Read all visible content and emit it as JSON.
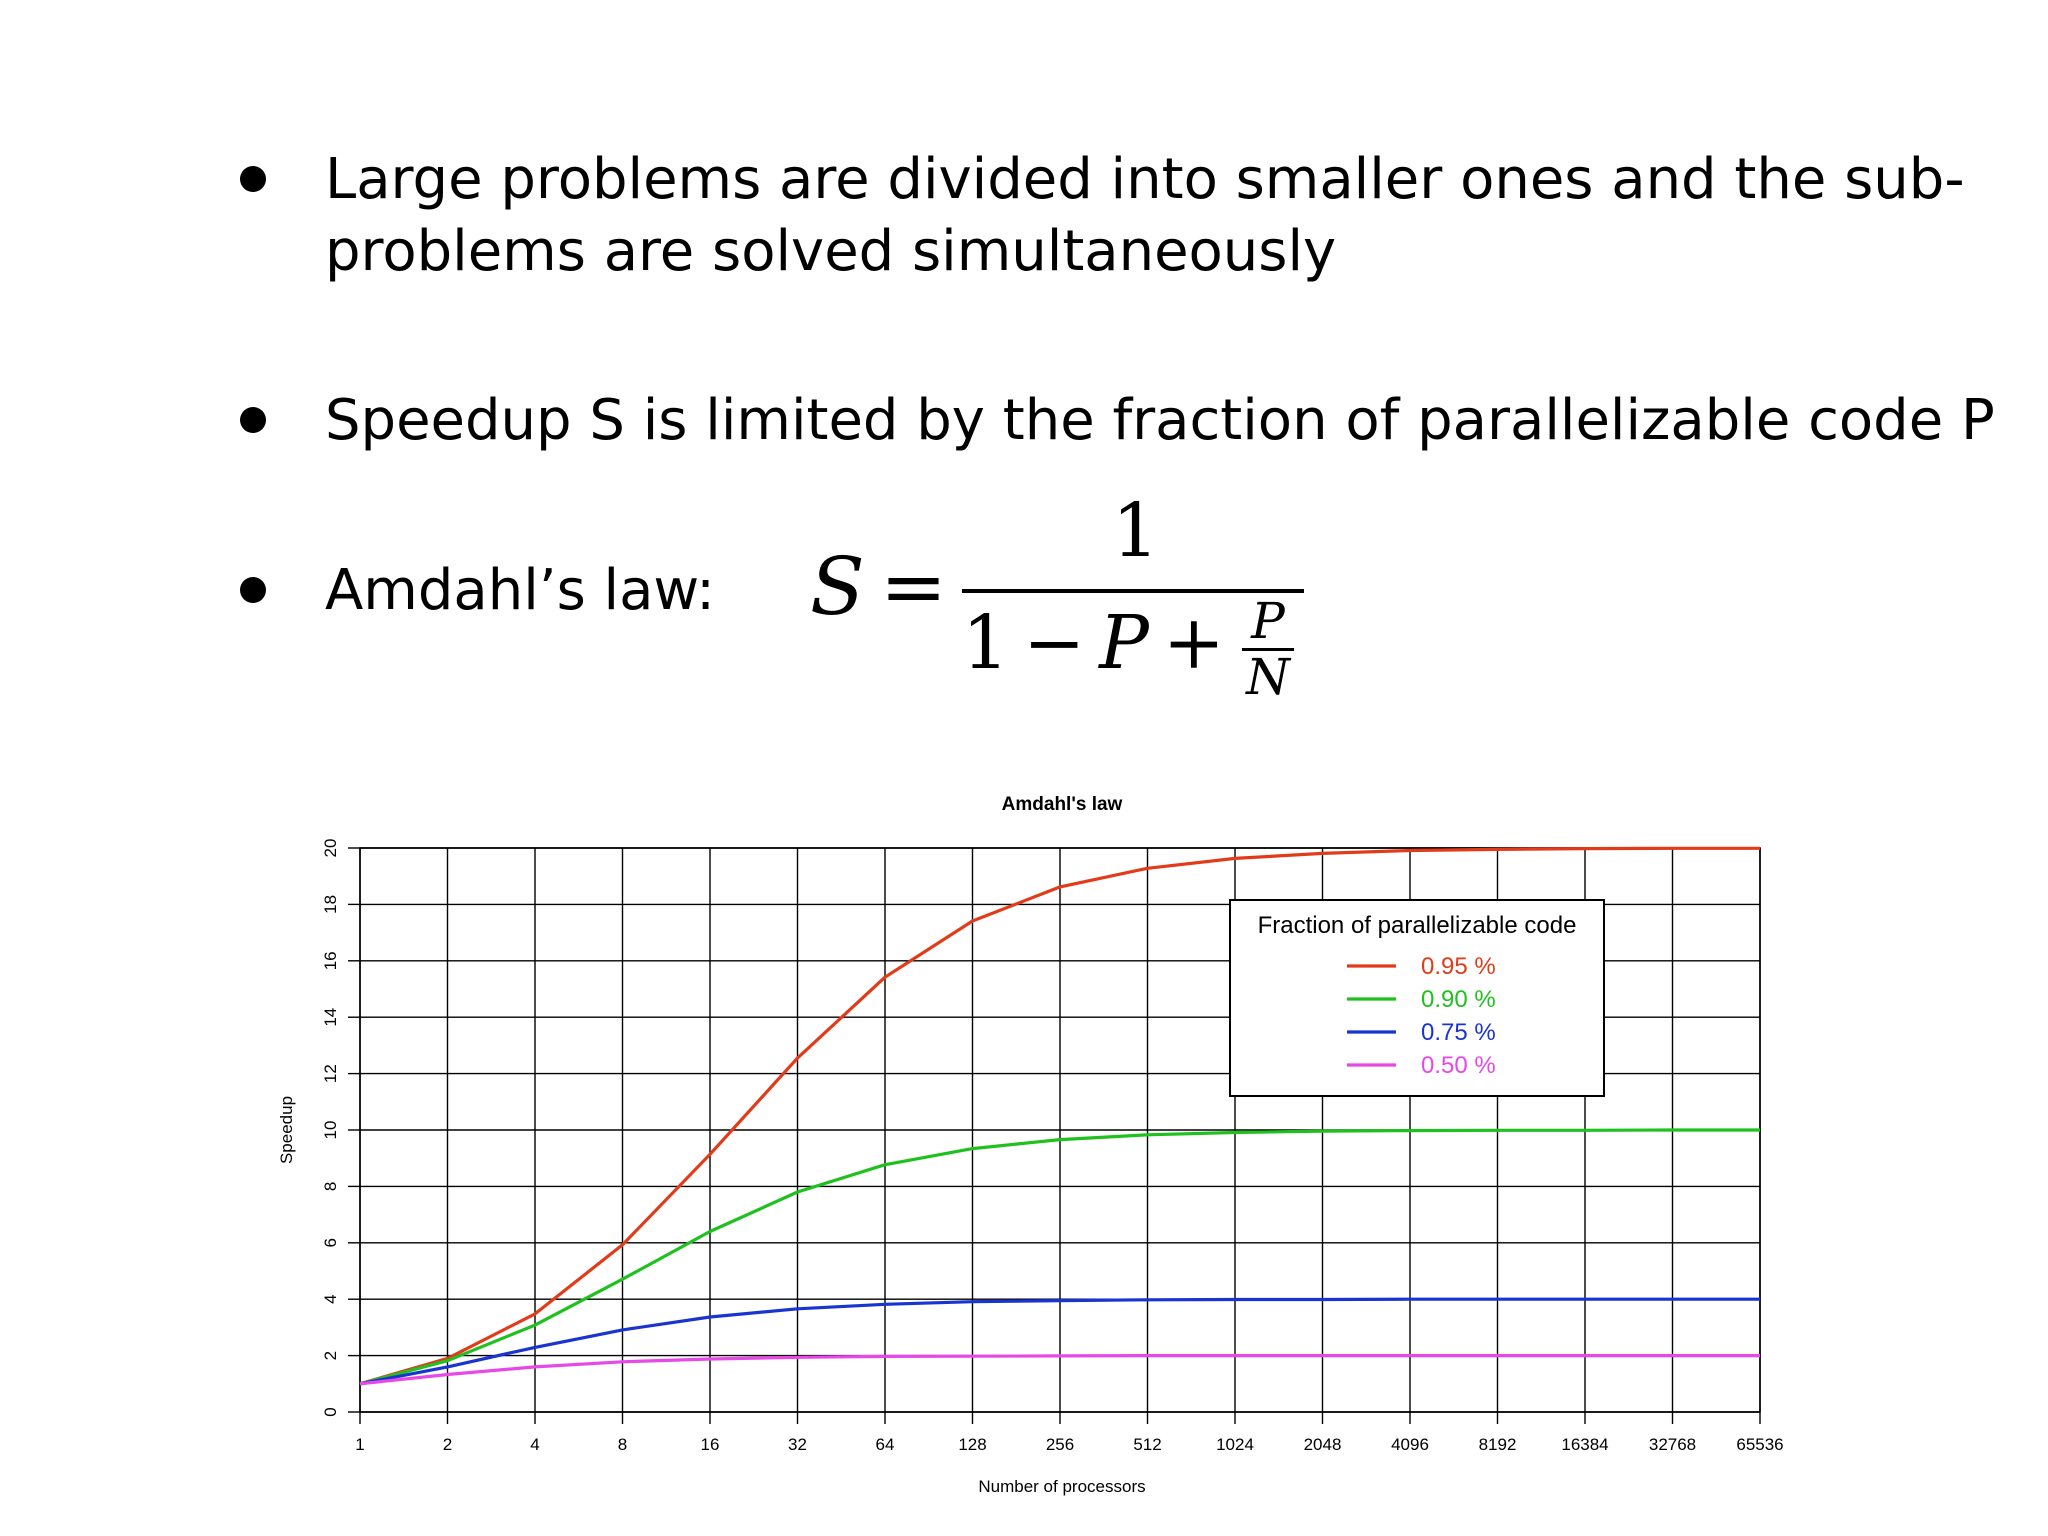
{
  "slide": {
    "bullets": [
      {
        "lines": [
          "Large problems are divided into smaller ones and the sub-",
          "problems are solved simultaneously"
        ]
      },
      {
        "lines": [
          "Speedup S is limited by the fraction of parallelizable code P"
        ]
      },
      {
        "lines": [
          "Amdahl’s law:"
        ]
      }
    ],
    "formula": {
      "lhs": "S",
      "equals": "=",
      "numerator": "1",
      "denominator_one": "1",
      "minus": "−",
      "P": "P",
      "plus": "+",
      "small_num": "P",
      "small_den": "N"
    }
  },
  "chart_data": {
    "type": "line",
    "title": "Amdahl's law",
    "xlabel": "Number of processors",
    "ylabel": "Speedup",
    "x": [
      "1",
      "2",
      "4",
      "8",
      "16",
      "32",
      "64",
      "128",
      "256",
      "512",
      "1024",
      "2048",
      "4096",
      "8192",
      "16384",
      "32768",
      "65536"
    ],
    "x_scale": "log2",
    "ylim": [
      0,
      20
    ],
    "yticks": [
      "0",
      "2",
      "4",
      "6",
      "8",
      "10",
      "12",
      "14",
      "16",
      "18",
      "20"
    ],
    "grid": true,
    "legend": {
      "title": "Fraction of parallelizable code",
      "placement": "top-right"
    },
    "series": [
      {
        "name": "0.95 %",
        "color": "#e23b1a",
        "values": [
          1.0,
          1.9,
          3.48,
          5.93,
          9.14,
          12.55,
          15.42,
          17.41,
          18.62,
          19.28,
          19.63,
          19.81,
          19.91,
          19.95,
          19.98,
          19.99,
          19.99
        ]
      },
      {
        "name": "0.90 %",
        "color": "#1fc11f",
        "values": [
          1.0,
          1.82,
          3.08,
          4.71,
          6.4,
          7.8,
          8.77,
          9.34,
          9.66,
          9.83,
          9.91,
          9.96,
          9.98,
          9.99,
          9.99,
          10.0,
          10.0
        ]
      },
      {
        "name": "0.75 %",
        "color": "#1a34d1",
        "values": [
          1.0,
          1.6,
          2.29,
          2.91,
          3.37,
          3.66,
          3.82,
          3.91,
          3.95,
          3.98,
          3.99,
          3.99,
          4.0,
          4.0,
          4.0,
          4.0,
          4.0
        ]
      },
      {
        "name": "0.50 %",
        "color": "#e848e8",
        "values": [
          1.0,
          1.33,
          1.6,
          1.78,
          1.88,
          1.94,
          1.97,
          1.98,
          1.99,
          2.0,
          2.0,
          2.0,
          2.0,
          2.0,
          2.0,
          2.0,
          2.0
        ]
      }
    ]
  }
}
